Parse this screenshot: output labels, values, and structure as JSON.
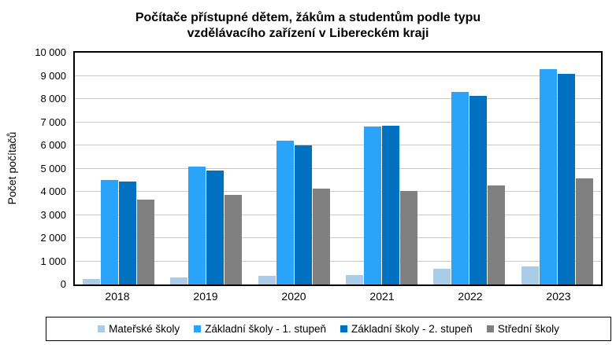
{
  "chart_data": {
    "type": "bar",
    "title": "Počítače přístupné dětem, žákům a studentům podle typu vzdělávacího zařízení v Libereckém kraji",
    "title_lines": [
      "Počítače přístupné dětem, žákům a studentům podle typu",
      "vzdělávacího zařízení v Libereckém kraji"
    ],
    "ylabel": "Počet počítačů",
    "xlabel": "",
    "categories": [
      "2018",
      "2019",
      "2020",
      "2021",
      "2022",
      "2023"
    ],
    "series": [
      {
        "name": "Mateřské školy",
        "color": "#A9CCE8",
        "values": [
          250,
          300,
          390,
          400,
          680,
          780
        ]
      },
      {
        "name": "Základní školy - 1. stupeň",
        "color": "#2AA4FA",
        "values": [
          4500,
          5070,
          6220,
          6800,
          8300,
          9280
        ]
      },
      {
        "name": "Základní školy - 2. stupeň",
        "color": "#0070C0",
        "values": [
          4430,
          4900,
          6000,
          6860,
          8120,
          9080
        ]
      },
      {
        "name": "Střední školy",
        "color": "#808080",
        "values": [
          3670,
          3850,
          4150,
          4020,
          4280,
          4580
        ]
      }
    ],
    "ylim": [
      0,
      10000
    ],
    "ytick_step": 1000,
    "ytick_labels": [
      "0",
      "1 000",
      "2 000",
      "3 000",
      "4 000",
      "5 000",
      "6 000",
      "7 000",
      "8 000",
      "9 000",
      "10 000"
    ],
    "grid": true,
    "gridline_color": "#C9C9C9",
    "legend_position": "bottom"
  }
}
